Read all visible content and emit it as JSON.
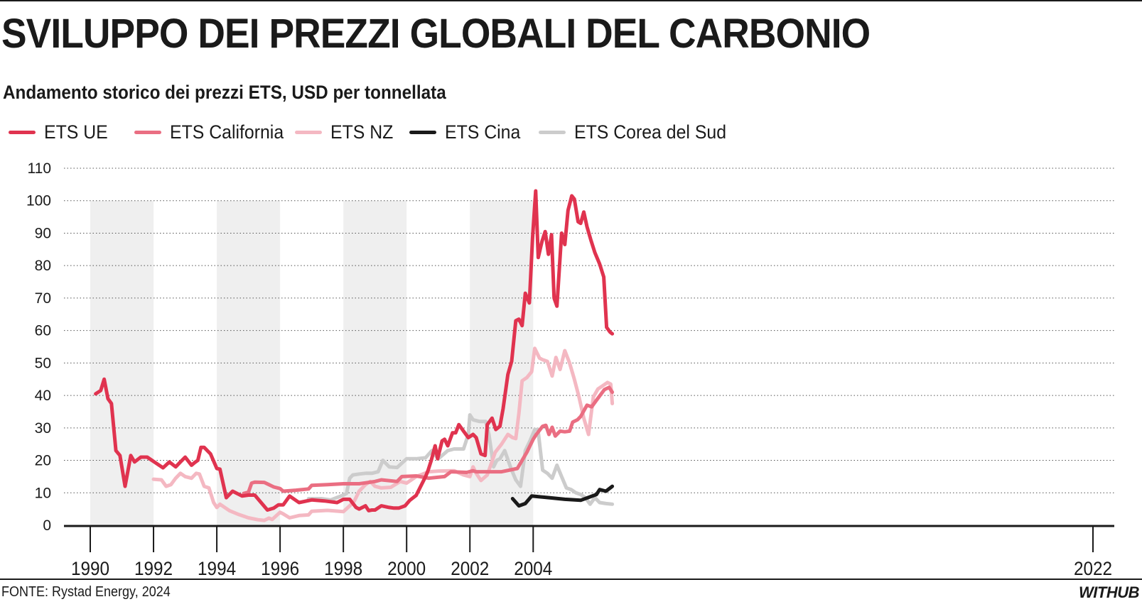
{
  "header": {
    "title": "SVILUPPO DEI PREZZI GLOBALI DEL CARBONIO",
    "subtitle": "Andamento storico dei prezzi ETS, USD per tonnellata"
  },
  "footer": {
    "source": "FONTE: Rystad Energy, 2024",
    "brand": "WITHUB"
  },
  "chart_data": {
    "type": "line",
    "title": "SVILUPPO DEI PREZZI GLOBALI DEL CARBONIO",
    "subtitle": "Andamento storico dei prezzi ETS, USD per tonnellata",
    "xlabel": "",
    "ylabel": "",
    "xlim": [
      1990,
      2022.3
    ],
    "ylim": [
      0,
      110
    ],
    "yticks": [
      0,
      10,
      20,
      30,
      40,
      50,
      60,
      70,
      80,
      90,
      100,
      110
    ],
    "xtick_values": [
      1990,
      1992,
      1994,
      1996,
      1998,
      2000,
      2002,
      2004,
      2022
    ],
    "xtick_labels": [
      "1990",
      "1992",
      "1994",
      "1996",
      "1998",
      "2000",
      "2002",
      "2004",
      "2022"
    ],
    "shaded_bands": [
      [
        1990,
        1992
      ],
      [
        1994,
        1996
      ],
      [
        1998,
        2000
      ],
      [
        2002,
        2004
      ]
    ],
    "grid": "horizontal dotted",
    "legend_position": "top-left",
    "series": [
      {
        "name": "ETS UE",
        "color": "#e0334f",
        "x": [
          1990.17,
          1990.33,
          1990.44,
          1990.56,
          1990.67,
          1990.81,
          1990.94,
          1991.1,
          1991.28,
          1991.4,
          1991.6,
          1991.8,
          1992.1,
          1992.3,
          1992.5,
          1992.7,
          1992.85,
          1993.0,
          1993.2,
          1993.3,
          1993.4,
          1993.5,
          1993.6,
          1993.8,
          1994.0,
          1994.1,
          1994.3,
          1994.5,
          1994.8,
          1995.0,
          1995.2,
          1995.4,
          1995.6,
          1995.8,
          1995.95,
          1996.1,
          1996.3,
          1996.6,
          1997.0,
          1997.4,
          1997.8,
          1998.0,
          1998.2,
          1998.4,
          1998.5,
          1998.7,
          1998.8,
          1998.9,
          1999.0,
          1999.2,
          1999.45,
          1999.6,
          1999.75,
          1999.95,
          2000.1,
          2000.3,
          2000.6,
          2000.68,
          2000.78,
          2000.9,
          2000.98,
          2001.12,
          2001.2,
          2001.3,
          2001.45,
          2001.55,
          2001.65,
          2001.8,
          2001.95,
          2002.1,
          2002.2,
          2002.35,
          2002.48,
          2002.55,
          2002.7,
          2002.82,
          2002.95,
          2003.05,
          2003.2,
          2003.32,
          2003.45,
          2003.55,
          2003.65,
          2003.75,
          2003.88,
          2003.98,
          2004.08,
          2004.16,
          2004.28,
          2004.38,
          2004.48,
          2004.58,
          2004.66,
          2004.75,
          2004.9,
          2005.0,
          2005.1,
          2005.22,
          2005.3,
          2005.42,
          2005.5,
          2005.6,
          2005.7,
          2005.82,
          2005.95,
          2006.1,
          2006.23,
          2006.32,
          2006.43,
          2006.5
        ],
        "values": [
          40.5,
          41.5,
          45,
          39,
          37.5,
          23,
          21.5,
          12,
          21.5,
          19.5,
          21,
          21,
          19,
          17.7,
          19.5,
          18,
          19.5,
          21,
          18.5,
          19.3,
          20,
          24,
          24,
          22,
          17.5,
          17.3,
          8.5,
          10.5,
          9,
          9.3,
          9.3,
          7,
          4.7,
          5.3,
          6.3,
          6.3,
          9,
          7,
          7.8,
          7.5,
          7,
          8,
          8,
          5.5,
          5,
          6,
          4.5,
          4.7,
          4.7,
          6,
          5.5,
          5.3,
          5.3,
          6,
          7.7,
          9.2,
          15,
          17,
          20,
          24.5,
          20.5,
          26,
          26.5,
          24.5,
          28.5,
          28.5,
          31,
          29,
          27,
          28,
          27,
          22,
          21.5,
          31,
          33,
          29.5,
          30.5,
          36,
          46.5,
          50.5,
          63,
          63.5,
          61.5,
          71.5,
          68.5,
          88.5,
          103,
          82.5,
          87.5,
          90.5,
          83.5,
          89.5,
          70,
          67.5,
          90,
          86.5,
          97,
          101.5,
          100.5,
          93.5,
          93,
          96.5,
          92,
          88,
          84,
          80.5,
          76.5,
          61,
          59.5,
          59
        ]
      },
      {
        "name": "ETS California",
        "color": "#ea6e82",
        "x": [
          1994.85,
          1995.0,
          1995.1,
          1995.2,
          1995.5,
          1995.8,
          1996.0,
          1996.1,
          1996.5,
          1996.9,
          1997.0,
          1997.5,
          1998.0,
          1998.5,
          1999.0,
          1999.2,
          1999.7,
          1999.85,
          2000.3,
          2000.7,
          2001.2,
          2001.4,
          2001.9,
          2002.1,
          2002.2,
          2002.5,
          2003.0,
          2003.5,
          2003.8,
          2004.0,
          2004.1,
          2004.3,
          2004.4,
          2004.5,
          2004.6,
          2004.7,
          2004.85,
          2005.0,
          2005.15,
          2005.25,
          2005.4,
          2005.5,
          2005.7,
          2005.85,
          2006.0,
          2006.25,
          2006.4,
          2006.5
        ],
        "values": [
          9.8,
          10.2,
          13,
          13.3,
          13.2,
          11.8,
          11.3,
          10.5,
          10.8,
          11.2,
          12.3,
          12.5,
          12.8,
          12.8,
          13.5,
          14,
          13.5,
          15,
          15.2,
          14.5,
          15,
          16.5,
          16.3,
          16.8,
          16.5,
          16.5,
          16.5,
          17.5,
          22.5,
          26.5,
          28,
          30.5,
          30.8,
          28,
          30.2,
          27.5,
          29,
          28.8,
          29,
          31.8,
          32.5,
          33.5,
          37,
          36.5,
          38.5,
          41.8,
          42.5,
          41
        ]
      },
      {
        "name": "ETS NZ",
        "color": "#f4b8c2",
        "x": [
          1992.0,
          1992.25,
          1992.4,
          1992.55,
          1992.7,
          1992.85,
          1993.0,
          1993.2,
          1993.35,
          1993.45,
          1993.6,
          1993.75,
          1993.9,
          1994.0,
          1994.1,
          1994.4,
          1994.7,
          1995.0,
          1995.3,
          1995.5,
          1995.65,
          1995.75,
          1996.0,
          1996.1,
          1996.3,
          1996.6,
          1996.9,
          1997.0,
          1997.5,
          1998.0,
          1998.2,
          1998.35,
          1998.5,
          1998.7,
          1998.85,
          1999.0,
          1999.2,
          1999.5,
          1999.8,
          2000.0,
          2000.3,
          2000.7,
          2001.0,
          2001.5,
          2001.8,
          2002.0,
          2002.1,
          2002.2,
          2002.35,
          2002.55,
          2002.8,
          2003.0,
          2003.2,
          2003.35,
          2003.45,
          2003.55,
          2003.65,
          2003.8,
          2003.95,
          2004.05,
          2004.2,
          2004.3,
          2004.45,
          2004.6,
          2004.72,
          2004.85,
          2005.0,
          2005.15,
          2005.3,
          2005.45,
          2005.6,
          2005.75,
          2005.9,
          2006.05,
          2006.2,
          2006.35,
          2006.45,
          2006.5
        ],
        "values": [
          14.2,
          14,
          12,
          12.5,
          14.5,
          16,
          15,
          14.5,
          16,
          15.8,
          12,
          11.5,
          7,
          5.5,
          6.5,
          4.5,
          3.3,
          2.3,
          1.7,
          1.5,
          2.2,
          1.8,
          4,
          3.5,
          2.3,
          3,
          3.2,
          4.3,
          4.6,
          4.2,
          6,
          7.5,
          10.5,
          12.5,
          13.5,
          12,
          11.5,
          11.7,
          13.5,
          13,
          15,
          16.5,
          16.7,
          16.8,
          15.5,
          15,
          18,
          16,
          13.8,
          15.5,
          22.5,
          25,
          28,
          27,
          26.7,
          34.5,
          44.5,
          45.5,
          47.3,
          54.5,
          51.5,
          51,
          50.5,
          46,
          51.7,
          48,
          53.8,
          50,
          45,
          39.5,
          33,
          28,
          39.5,
          42,
          43,
          44,
          43.5,
          37.5
        ]
      },
      {
        "name": "ETS Cina",
        "color": "#1a1a1a",
        "x": [
          2003.35,
          2003.55,
          2003.75,
          2003.95,
          2004.5,
          2005.0,
          2005.5,
          2006.0,
          2006.1,
          2006.3,
          2006.5
        ],
        "values": [
          8.2,
          6.0,
          6.7,
          9,
          8.5,
          8,
          7.7,
          9.5,
          11,
          10.5,
          12
        ]
      },
      {
        "name": "ETS Corea del Sud",
        "color": "#cccccc",
        "x": [
          1996.9,
          1997.3,
          1997.6,
          1998.0,
          1998.1,
          1998.2,
          1998.3,
          1998.5,
          1998.7,
          1998.9,
          1999.1,
          1999.25,
          1999.45,
          1999.7,
          2000.0,
          2000.3,
          2000.6,
          2000.8,
          2001.0,
          2001.3,
          2001.5,
          2001.8,
          2001.95,
          2002.0,
          2002.1,
          2002.3,
          2002.5,
          2002.6,
          2002.75,
          2002.85,
          2002.95,
          2003.1,
          2003.3,
          2003.45,
          2003.6,
          2003.75,
          2003.9,
          2004.05,
          2004.15,
          2004.3,
          2004.45,
          2004.6,
          2004.75,
          2004.9,
          2005.05,
          2005.2,
          2005.35,
          2005.5,
          2005.65,
          2005.8,
          2005.95,
          2006.1,
          2006.3,
          2006.5
        ],
        "values": [
          8.2,
          8.2,
          7.8,
          9.3,
          9.8,
          14.5,
          15.5,
          15.8,
          16,
          16,
          16.5,
          20,
          18,
          17.8,
          20.5,
          20.5,
          20.8,
          23,
          20.5,
          23,
          23.5,
          23.5,
          28,
          34,
          32.5,
          32,
          32,
          28,
          18,
          20,
          20.5,
          23,
          17.5,
          14,
          12,
          23,
          26,
          29.5,
          29.5,
          17,
          16,
          14.5,
          18.5,
          15,
          11.5,
          11,
          10,
          9.5,
          8.5,
          6.5,
          8.5,
          7,
          6.7,
          6.5
        ]
      }
    ]
  }
}
